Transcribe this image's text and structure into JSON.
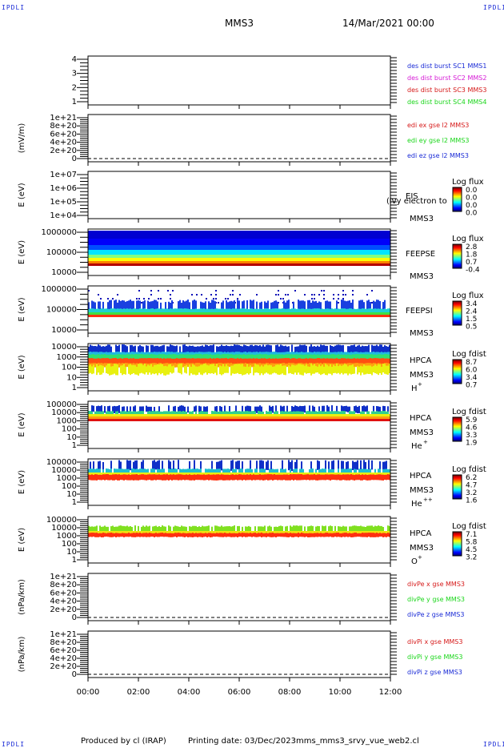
{
  "corner_label": "IPDLI",
  "header": {
    "spacecraft": "MMS3",
    "date": "14/Mar/2021 00:00"
  },
  "footer": {
    "produced": "Produced by cl (IRAP)",
    "printing": "Printing date: 03/Dec/2023",
    "file": "mms_mms3_srvy_vue_web2.cl"
  },
  "chart_data": {
    "type": "heatmap",
    "x_ticks": [
      "00:00",
      "02:00",
      "04:00",
      "06:00",
      "08:00",
      "10:00",
      "12:00"
    ],
    "x_range_hours": [
      0,
      12
    ],
    "panels": [
      {
        "id": "burst",
        "type": "line",
        "ylabel": "",
        "y_ticks": [
          "4",
          "3",
          "2",
          "1"
        ],
        "legend": [
          {
            "text": "des dist burst SC1 MMS1",
            "color": "#1a2bd6"
          },
          {
            "text": "des dist burst SC2 MMS2",
            "color": "#d61ad6"
          },
          {
            "text": "des dist burst SC3 MMS3",
            "color": "#d61a1a"
          },
          {
            "text": "des dist burst SC4 MMS4",
            "color": "#1ad61a"
          }
        ]
      },
      {
        "id": "edi",
        "type": "line",
        "ylabel": "(mV/m)",
        "y_ticks": [
          "1e+21",
          "8e+20",
          "6e+20",
          "4e+20",
          "2e+20",
          "0"
        ],
        "legend": [
          {
            "text": "edi ex gse l2 MMS3",
            "color": "#d61a1a"
          },
          {
            "text": "edi ey gse l2 MMS3",
            "color": "#1ad61a"
          },
          {
            "text": "edi ez gse l2 MMS3",
            "color": "#1a2bd6"
          }
        ]
      },
      {
        "id": "eis",
        "type": "heatmap",
        "ylabel": "E (eV)",
        "y_ticks": [
          "1e+07",
          "1e+06",
          "1e+05",
          "1e+04"
        ],
        "name": "EIS",
        "sc": "MMS3",
        "overlay": "(ivy electron to",
        "cbar_title": "Log flux",
        "cbar_ticks": [
          "0.0",
          "0.0",
          "0.0",
          "0.0"
        ]
      },
      {
        "id": "feepse",
        "type": "heatmap",
        "ylabel": "E (eV)",
        "y_ticks": [
          "1000000",
          "100000",
          "10000"
        ],
        "name": "FEEPSE",
        "sc": "MMS3",
        "cbar_title": "Log flux",
        "cbar_ticks": [
          "2.8",
          "1.8",
          "0.7",
          "-0.4"
        ]
      },
      {
        "id": "feepsi",
        "type": "heatmap",
        "ylabel": "E (eV)",
        "y_ticks": [
          "1000000",
          "100000",
          "10000"
        ],
        "name": "FEEPSI",
        "sc": "MMS3",
        "cbar_title": "Log flux",
        "cbar_ticks": [
          "3.4",
          "2.4",
          "1.5",
          "0.5"
        ]
      },
      {
        "id": "hpca-h",
        "type": "heatmap",
        "ylabel": "E (eV)",
        "y_ticks": [
          "10000",
          "1000",
          "100",
          "10",
          "1"
        ],
        "name": "HPCA",
        "sc": "MMS3",
        "species": "H",
        "charge": "+",
        "cbar_title": "Log fdist",
        "cbar_ticks": [
          "8.7",
          "6.0",
          "3.4",
          "0.7"
        ]
      },
      {
        "id": "hpca-he",
        "type": "heatmap",
        "ylabel": "E (eV)",
        "y_ticks": [
          "100000",
          "10000",
          "1000",
          "100",
          "10",
          "1"
        ],
        "name": "HPCA",
        "sc": "MMS3",
        "species": "He",
        "charge": "+",
        "cbar_title": "Log fdist",
        "cbar_ticks": [
          "5.9",
          "4.6",
          "3.3",
          "1.9"
        ]
      },
      {
        "id": "hpca-he2",
        "type": "heatmap",
        "ylabel": "E (eV)",
        "y_ticks": [
          "100000",
          "10000",
          "1000",
          "100",
          "10",
          "1"
        ],
        "name": "HPCA",
        "sc": "MMS3",
        "species": "He",
        "charge": "++",
        "cbar_title": "Log fdist",
        "cbar_ticks": [
          "6.2",
          "4.7",
          "3.2",
          "1.6"
        ]
      },
      {
        "id": "hpca-o",
        "type": "heatmap",
        "ylabel": "E (eV)",
        "y_ticks": [
          "100000",
          "10000",
          "1000",
          "100",
          "10",
          "1"
        ],
        "name": "HPCA",
        "sc": "MMS3",
        "species": "O",
        "charge": "+",
        "cbar_title": "Log fdist",
        "cbar_ticks": [
          "7.1",
          "5.8",
          "4.5",
          "3.2"
        ]
      },
      {
        "id": "divpe",
        "type": "line",
        "ylabel": "(nPa/km)",
        "y_ticks": [
          "1e+21",
          "8e+20",
          "6e+20",
          "4e+20",
          "2e+20",
          "0"
        ],
        "legend": [
          {
            "text": "divPe x gse MMS3",
            "color": "#d61a1a"
          },
          {
            "text": "divPe y gse MMS3",
            "color": "#1ad61a"
          },
          {
            "text": "divPe z gse MMS3",
            "color": "#1a2bd6"
          }
        ]
      },
      {
        "id": "divpi",
        "type": "line",
        "ylabel": "(nPa/km)",
        "y_ticks": [
          "1e+21",
          "8e+20",
          "6e+20",
          "4e+20",
          "2e+20",
          "0"
        ],
        "legend": [
          {
            "text": "divPi x gse MMS3",
            "color": "#d61a1a"
          },
          {
            "text": "divPi y gse MMS3",
            "color": "#1ad61a"
          },
          {
            "text": "divPi z gse MMS3",
            "color": "#1a2bd6"
          }
        ]
      }
    ]
  }
}
